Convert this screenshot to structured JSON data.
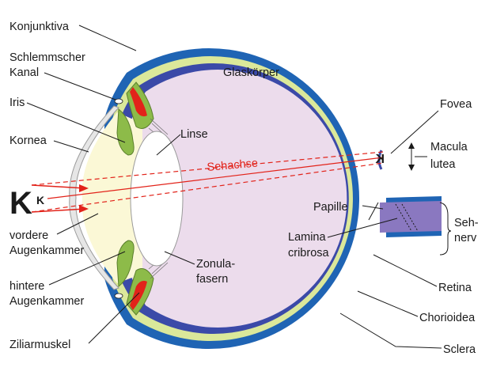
{
  "labels": {
    "konjunktiva": "Konjunktiva",
    "schlemm_1": "Schlemmscher",
    "schlemm_2": "Kanal",
    "iris": "Iris",
    "kornea": "Kornea",
    "vordere_1": "vordere",
    "vordere_2": "Augenkammer",
    "hintere_1": "hintere",
    "hintere_2": "Augenkammer",
    "ziliarmuskel": "Ziliarmuskel",
    "glaskoerper": "Glaskörper",
    "linse": "Linse",
    "sehachse": "Sehachse",
    "zonula_1": "Zonula-",
    "zonula_2": "fasern",
    "papille": "Papille",
    "lamina_1": "Lamina",
    "lamina_2": "cribrosa",
    "fovea": "Fovea",
    "macula_1": "Macula",
    "macula_2": "lutea",
    "sehnerv_1": "Seh-",
    "sehnerv_2": "nerv",
    "retina": "Retina",
    "chorioidea": "Chorioidea",
    "sclera": "Sclera",
    "object_big": "K",
    "object_small": "K",
    "image_retina": "K"
  },
  "colors": {
    "sclera": "#1f64b4",
    "choroid_band": "#dbe89a",
    "retina_band": "#3b4aa8",
    "vitreous": "#ecdcec",
    "lens": "#ffffff",
    "aqueous": "#fbf8d6",
    "cornea": "#e6e6e6",
    "iris_green": "#8dbb49",
    "muscle_red": "#e2231a",
    "axis_red": "#e2231a",
    "text": "#1a1a1a"
  }
}
